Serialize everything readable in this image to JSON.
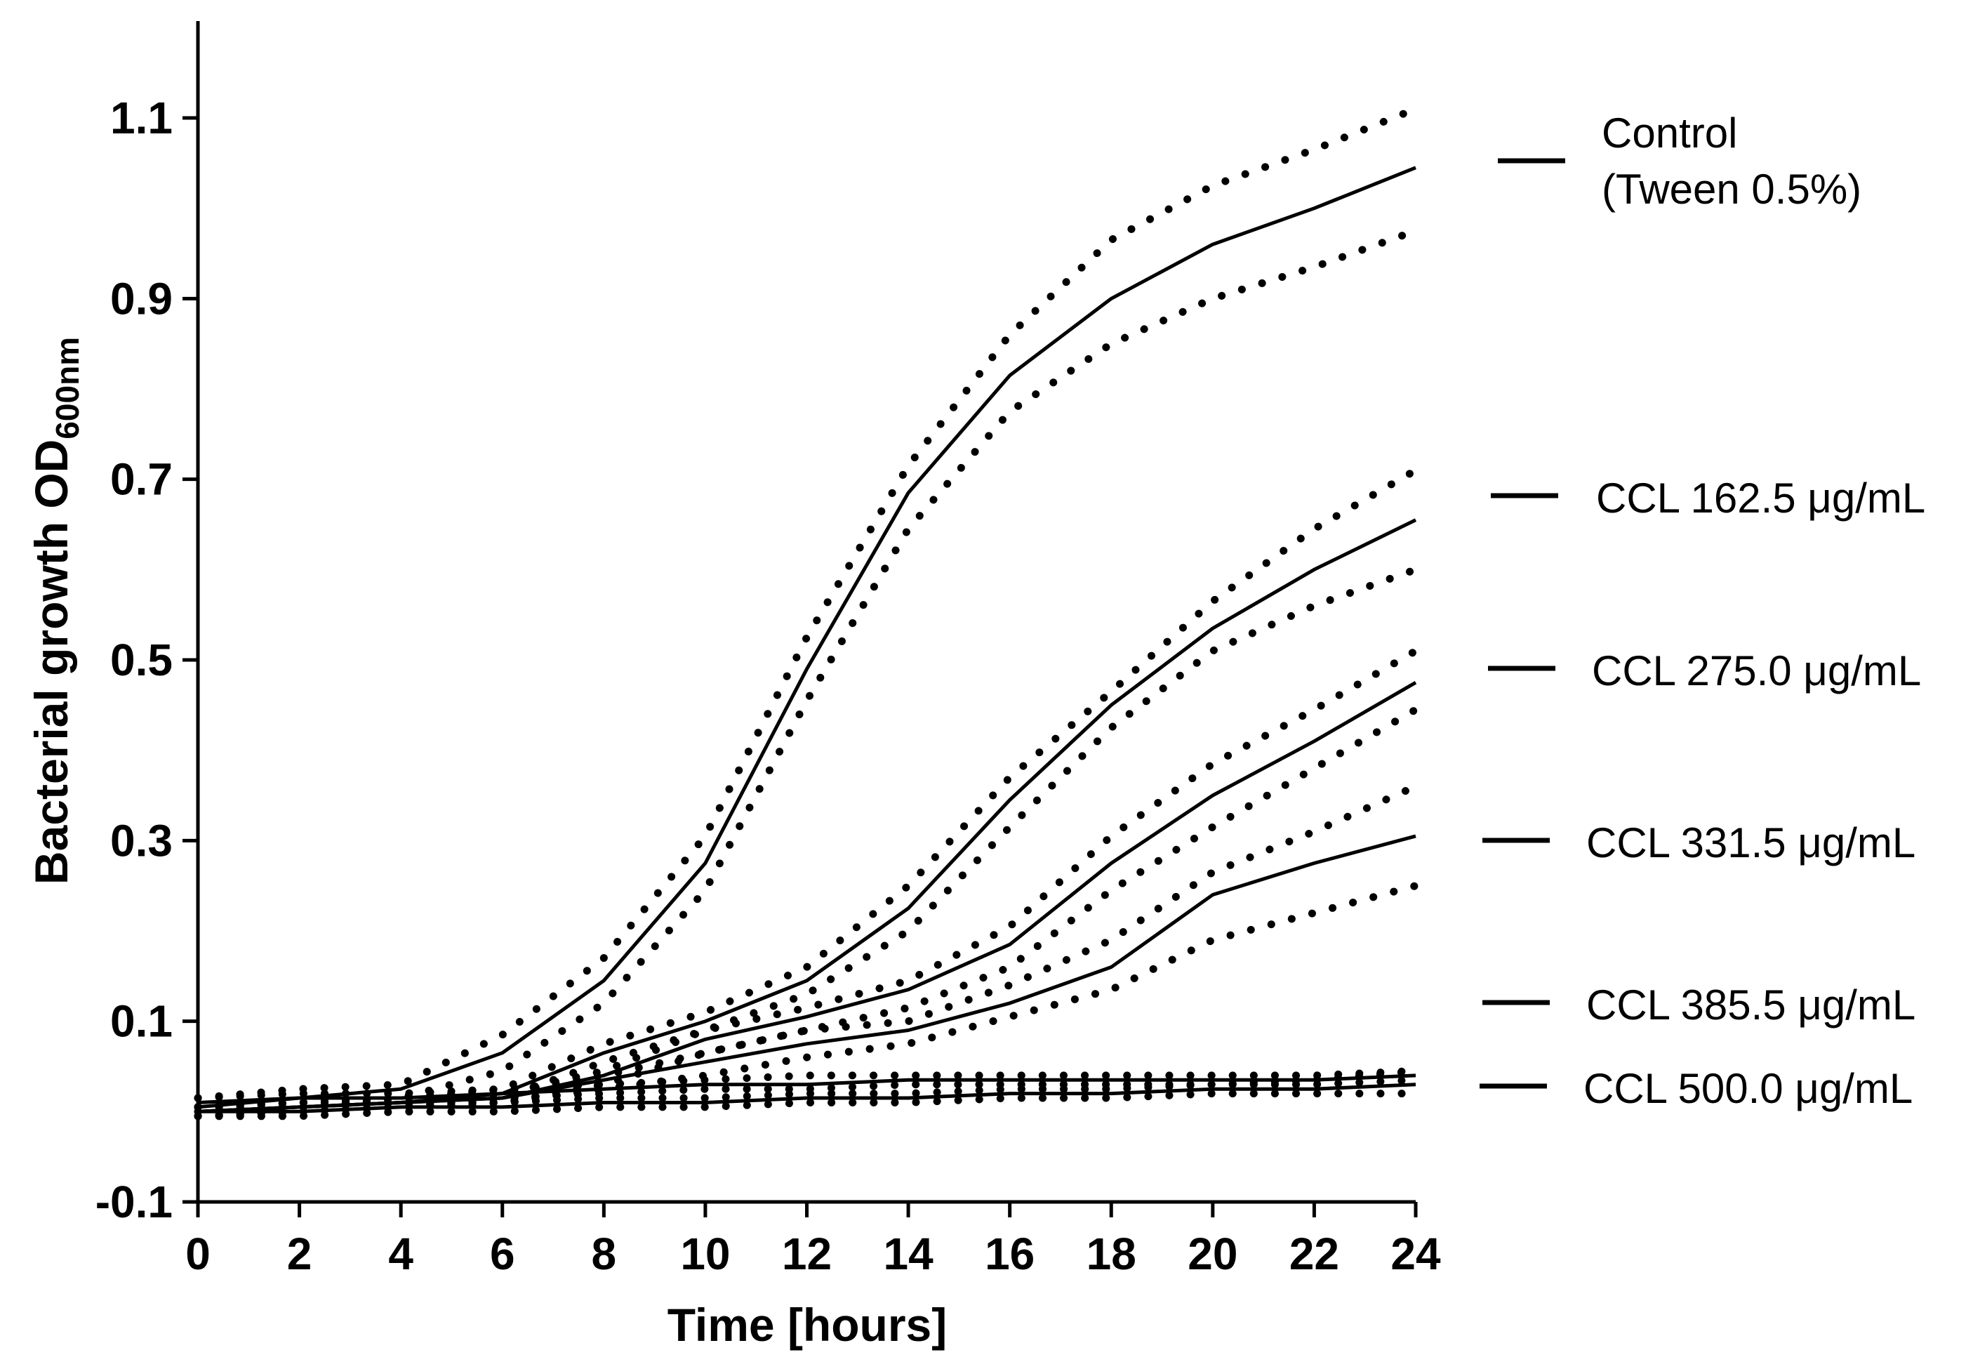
{
  "chart_data": {
    "type": "line",
    "title": "",
    "xlabel": "Time [hours]",
    "ylabel": {
      "main": "Bacterial growth OD",
      "subscript": "600nm"
    },
    "xlim": [
      0,
      24
    ],
    "ylim": [
      -0.1,
      1.2
    ],
    "x_ticks": [
      0,
      2,
      4,
      6,
      8,
      10,
      12,
      14,
      16,
      18,
      20,
      22,
      24
    ],
    "x_tick_labels": [
      "0",
      "2",
      "4",
      "6",
      "8",
      "10",
      "12",
      "14",
      "16",
      "18",
      "20",
      "22",
      "24"
    ],
    "y_ticks": [
      -0.1,
      0.1,
      0.3,
      0.5,
      0.7,
      0.9,
      1.1
    ],
    "y_tick_labels": [
      "-0.1",
      "0.1",
      "0.3",
      "0.5",
      "0.7",
      "0.9",
      "1.1"
    ],
    "grid": false,
    "legend_position": "right",
    "note": "solid lines = mean; dotted lines = confidence band",
    "x": [
      0,
      2,
      4,
      6,
      8,
      10,
      12,
      14,
      16,
      18,
      20,
      22,
      24
    ],
    "series": [
      {
        "name": "Control (Tween 0.5%)",
        "legend_lines": [
          "Control",
          "(Tween 0.5%)"
        ],
        "values": [
          0.005,
          0.015,
          0.025,
          0.065,
          0.145,
          0.275,
          0.49,
          0.685,
          0.815,
          0.9,
          0.96,
          1.0,
          1.045
        ],
        "upper": [
          0.015,
          0.025,
          0.03,
          0.085,
          0.17,
          0.305,
          0.525,
          0.715,
          0.86,
          0.965,
          1.025,
          1.065,
          1.11
        ],
        "lower": [
          0.0,
          0.005,
          0.015,
          0.045,
          0.12,
          0.245,
          0.455,
          0.645,
          0.775,
          0.85,
          0.9,
          0.935,
          0.975
        ]
      },
      {
        "name": "CCL 162.5 μg/mL",
        "legend_lines": [
          "CCL 162.5 μg/mL"
        ],
        "values": [
          0.0,
          0.005,
          0.01,
          0.02,
          0.065,
          0.1,
          0.145,
          0.225,
          0.345,
          0.45,
          0.535,
          0.6,
          0.655
        ],
        "upper": [
          0.005,
          0.01,
          0.015,
          0.025,
          0.075,
          0.11,
          0.16,
          0.25,
          0.37,
          0.465,
          0.565,
          0.645,
          0.71
        ],
        "lower": [
          -0.005,
          0.0,
          0.005,
          0.015,
          0.055,
          0.09,
          0.13,
          0.2,
          0.315,
          0.425,
          0.51,
          0.56,
          0.6
        ]
      },
      {
        "name": "CCL 275.0 μg/mL",
        "legend_lines": [
          "CCL 275.0 μg/mL"
        ],
        "values": [
          0.0,
          0.005,
          0.01,
          0.015,
          0.04,
          0.08,
          0.105,
          0.135,
          0.185,
          0.275,
          0.35,
          0.41,
          0.475
        ],
        "upper": [
          0.005,
          0.01,
          0.015,
          0.02,
          0.045,
          0.09,
          0.115,
          0.145,
          0.205,
          0.305,
          0.385,
          0.445,
          0.51
        ],
        "lower": [
          -0.005,
          0.0,
          0.005,
          0.01,
          0.03,
          0.065,
          0.09,
          0.115,
          0.16,
          0.245,
          0.315,
          0.38,
          0.445
        ]
      },
      {
        "name": "CCL 331.5 μg/mL",
        "legend_lines": [
          "CCL 331.5 μg/mL"
        ],
        "values": [
          0.0,
          0.005,
          0.01,
          0.015,
          0.035,
          0.055,
          0.075,
          0.09,
          0.12,
          0.16,
          0.24,
          0.275,
          0.305
        ],
        "upper": [
          0.005,
          0.01,
          0.015,
          0.02,
          0.04,
          0.065,
          0.09,
          0.1,
          0.14,
          0.19,
          0.265,
          0.31,
          0.36
        ],
        "lower": [
          -0.005,
          0.0,
          0.005,
          0.01,
          0.025,
          0.04,
          0.06,
          0.075,
          0.105,
          0.135,
          0.19,
          0.22,
          0.25
        ]
      },
      {
        "name": "CCL 385.5 μg/mL",
        "legend_lines": [
          "CCL 385.5 μg/mL"
        ],
        "values": [
          0.01,
          0.015,
          0.015,
          0.02,
          0.025,
          0.03,
          0.03,
          0.035,
          0.035,
          0.035,
          0.035,
          0.035,
          0.04
        ],
        "upper": [
          0.015,
          0.02,
          0.02,
          0.025,
          0.03,
          0.035,
          0.04,
          0.04,
          0.04,
          0.04,
          0.04,
          0.04,
          0.045
        ],
        "lower": [
          0.005,
          0.01,
          0.01,
          0.015,
          0.02,
          0.025,
          0.025,
          0.03,
          0.03,
          0.03,
          0.03,
          0.03,
          0.035
        ]
      },
      {
        "name": "CCL 500.0 μg/mL",
        "legend_lines": [
          "CCL 500.0 μg/mL"
        ],
        "values": [
          0.0,
          0.0,
          0.005,
          0.005,
          0.01,
          0.01,
          0.015,
          0.015,
          0.02,
          0.02,
          0.025,
          0.025,
          0.03
        ],
        "upper": [
          0.005,
          0.005,
          0.01,
          0.01,
          0.015,
          0.015,
          0.02,
          0.02,
          0.025,
          0.025,
          0.03,
          0.035,
          0.045
        ],
        "lower": [
          -0.005,
          -0.005,
          0.0,
          0.0,
          0.005,
          0.005,
          0.01,
          0.01,
          0.015,
          0.015,
          0.02,
          0.02,
          0.02
        ]
      }
    ]
  }
}
